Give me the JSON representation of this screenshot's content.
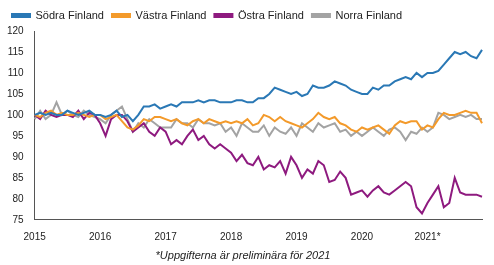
{
  "chart_data": {
    "type": "line",
    "footnote": "*Uppgifterna är preliminära för 2021",
    "categories": [
      "2015",
      null,
      null,
      null,
      null,
      null,
      null,
      null,
      null,
      null,
      null,
      null,
      "2016",
      null,
      null,
      null,
      null,
      null,
      null,
      null,
      null,
      null,
      null,
      null,
      "2017",
      null,
      null,
      null,
      null,
      null,
      null,
      null,
      null,
      null,
      null,
      null,
      "2018",
      null,
      null,
      null,
      null,
      null,
      null,
      null,
      null,
      null,
      null,
      null,
      "2019",
      null,
      null,
      null,
      null,
      null,
      null,
      null,
      null,
      null,
      null,
      null,
      "2020",
      null,
      null,
      null,
      null,
      null,
      null,
      null,
      null,
      null,
      null,
      null,
      "2021*",
      null,
      null,
      null,
      null,
      null,
      null,
      null,
      null,
      null,
      null
    ],
    "series": [
      {
        "name": "Södra Finland",
        "color": "#2a78b5",
        "values": [
          100,
          100.5,
          100,
          100.5,
          100,
          100,
          101,
          100.5,
          100,
          100.5,
          101,
          100,
          100,
          99.5,
          100,
          101,
          99.5,
          100,
          98.5,
          100,
          102,
          102,
          102.5,
          101.5,
          102,
          102.5,
          102,
          103,
          103,
          103,
          103.5,
          103,
          103.5,
          103.5,
          103,
          103,
          103,
          103.5,
          103.5,
          103,
          103,
          104,
          104,
          105,
          106.5,
          106,
          105.5,
          105,
          105.5,
          104.5,
          105,
          107,
          106.5,
          106.5,
          107,
          108,
          107.5,
          107,
          106,
          105.5,
          105,
          105,
          106.5,
          106,
          107,
          107,
          108,
          108.5,
          109,
          108.5,
          110,
          109,
          110,
          110,
          110.5,
          112,
          113.5,
          115,
          114.5,
          115,
          114,
          113.5,
          115.5
        ]
      },
      {
        "name": "Västra Finland",
        "color": "#f39a2b",
        "values": [
          100,
          99.5,
          100.5,
          101,
          100,
          100.5,
          100,
          100,
          100.5,
          100,
          99.5,
          100,
          100,
          99,
          99.5,
          100,
          98.5,
          97,
          96.5,
          97.5,
          99,
          98.5,
          99.5,
          99.5,
          99,
          98.5,
          99,
          98,
          97.5,
          98.5,
          99,
          98,
          99,
          98.5,
          98,
          98.5,
          98,
          98.5,
          98,
          99,
          97.5,
          98,
          100,
          99.5,
          98.5,
          99.5,
          98.5,
          98,
          97.5,
          97,
          98,
          99,
          100.5,
          99.5,
          99,
          99.5,
          98,
          97.5,
          96.5,
          96,
          97,
          96.5,
          97,
          97.5,
          96.5,
          95.5,
          97.5,
          98.5,
          98,
          98.5,
          98.5,
          96.5,
          97.5,
          97,
          99,
          100.5,
          100,
          100,
          100.5,
          101,
          100.5,
          100.5,
          98
        ]
      },
      {
        "name": "Östra Finland",
        "color": "#8e1a7f",
        "values": [
          100,
          99,
          101,
          100,
          99.5,
          100,
          100,
          99.5,
          101,
          99,
          100.5,
          100,
          98,
          95,
          99,
          100,
          100,
          98.5,
          96,
          97,
          98,
          96,
          95,
          97,
          96,
          93,
          94,
          93,
          95,
          96.5,
          94,
          95,
          93,
          92,
          93,
          92,
          91,
          89,
          90.5,
          88.5,
          88,
          90,
          87,
          88,
          87.5,
          89,
          86,
          90,
          88,
          85,
          87,
          86,
          89,
          88,
          84,
          84.5,
          86.5,
          85,
          81,
          81.5,
          82,
          80.5,
          82,
          83,
          81.5,
          81,
          82,
          83,
          84,
          83,
          78,
          76.5,
          79,
          81,
          83,
          78,
          79,
          85,
          81.5,
          81,
          81,
          81,
          80.5
        ]
      },
      {
        "name": "Norra Finland",
        "color": "#a3a3a3",
        "values": [
          99,
          101,
          99,
          100,
          103,
          100,
          101,
          100,
          99.5,
          101,
          100,
          99.5,
          99,
          98,
          100,
          101,
          102,
          99,
          96,
          98,
          97,
          99,
          98,
          97,
          97,
          97,
          99,
          98,
          98,
          97,
          99,
          98,
          98,
          97.5,
          98,
          96,
          97,
          95,
          98,
          97,
          96,
          96,
          97.5,
          95,
          97,
          96,
          95.5,
          97,
          95,
          98,
          97,
          96,
          98,
          97,
          97.5,
          98,
          96,
          96.5,
          95,
          96,
          95,
          96,
          97,
          96,
          95,
          96.5,
          97,
          96,
          94,
          96,
          95.5,
          97,
          96,
          97,
          100.5,
          100,
          99,
          99.5,
          100,
          99.5,
          100,
          99,
          99
        ]
      }
    ],
    "ylim": [
      75,
      120
    ],
    "yticks": [
      75,
      80,
      85,
      90,
      95,
      100,
      105,
      110,
      115,
      120
    ],
    "grid": false,
    "legend": "top"
  }
}
